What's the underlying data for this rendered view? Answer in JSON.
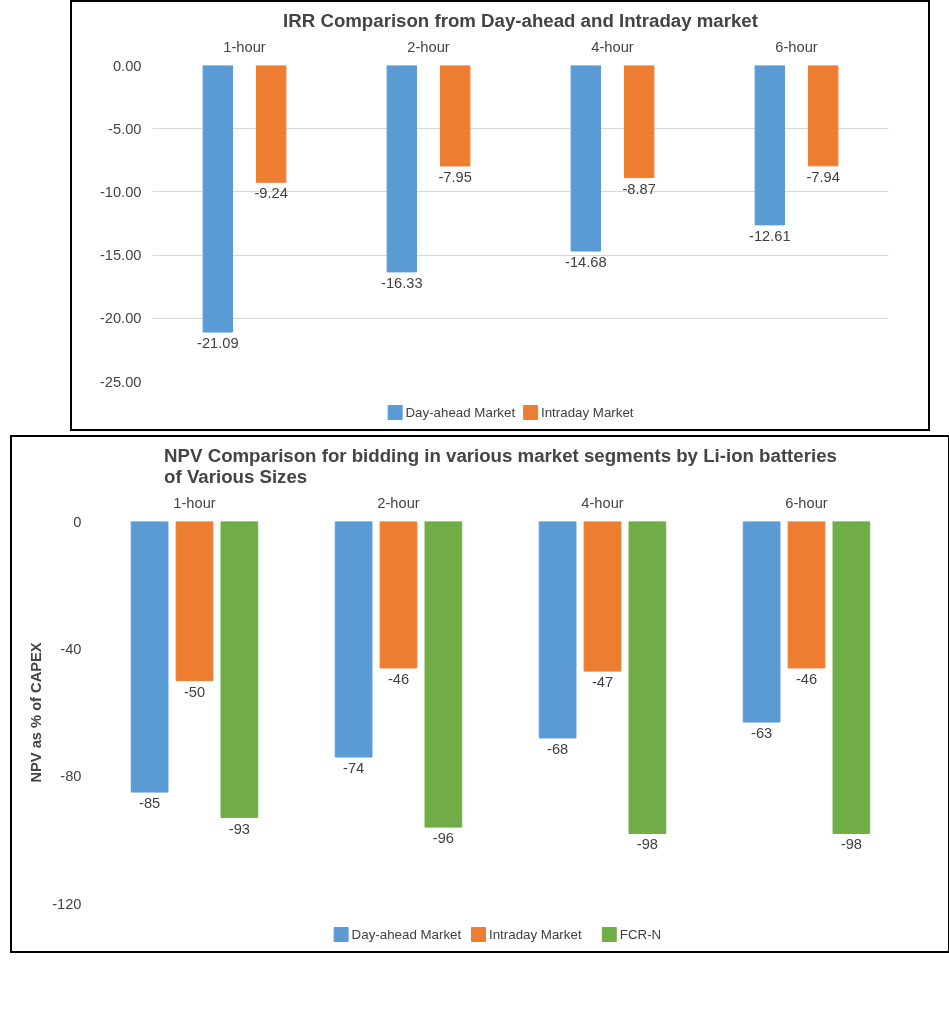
{
  "chart_data": [
    {
      "type": "bar",
      "title": "IRR Comparison from Day-ahead and Intraday market",
      "categories": [
        "1-hour",
        "2-hour",
        "4-hour",
        "6-hour"
      ],
      "series": [
        {
          "name": "Day-ahead Market",
          "color": "#5b9bd5",
          "values": [
            -21.09,
            -16.33,
            -14.68,
            -12.61
          ]
        },
        {
          "name": "Intraday Market",
          "color": "#ed7d31",
          "values": [
            -9.24,
            -7.95,
            -8.87,
            -7.94
          ]
        }
      ],
      "ylim": [
        -25,
        0
      ],
      "yticks": [
        {
          "value": 0,
          "label": "0.00"
        },
        {
          "value": -5,
          "label": "-5.00"
        },
        {
          "value": -10,
          "label": "-10.00"
        },
        {
          "value": -15,
          "label": "-15.00"
        },
        {
          "value": -20,
          "label": "-20.00"
        },
        {
          "value": -25,
          "label": "-25.00"
        }
      ],
      "grid": "y",
      "legend": "bottom",
      "data_labels": true
    },
    {
      "type": "bar",
      "title": "NPV Comparison for bidding in various market segments by Li-ion batteries of Various Sizes",
      "ylabel": "NPV as % of CAPEX",
      "categories": [
        "1-hour",
        "2-hour",
        "4-hour",
        "6-hour"
      ],
      "series": [
        {
          "name": "Day-ahead Market",
          "color": "#5b9bd5",
          "values": [
            -85,
            -74,
            -68,
            -63
          ]
        },
        {
          "name": "Intraday Market",
          "color": "#ed7d31",
          "values": [
            -50,
            -46,
            -47,
            -46
          ]
        },
        {
          "name": "FCR-N",
          "color": "#70ad47",
          "values": [
            -93,
            -96,
            -98,
            -98
          ]
        }
      ],
      "ylim": [
        -120,
        0
      ],
      "yticks": [
        0,
        -40,
        -80,
        -120
      ],
      "legend": "bottom",
      "data_labels": true
    }
  ]
}
